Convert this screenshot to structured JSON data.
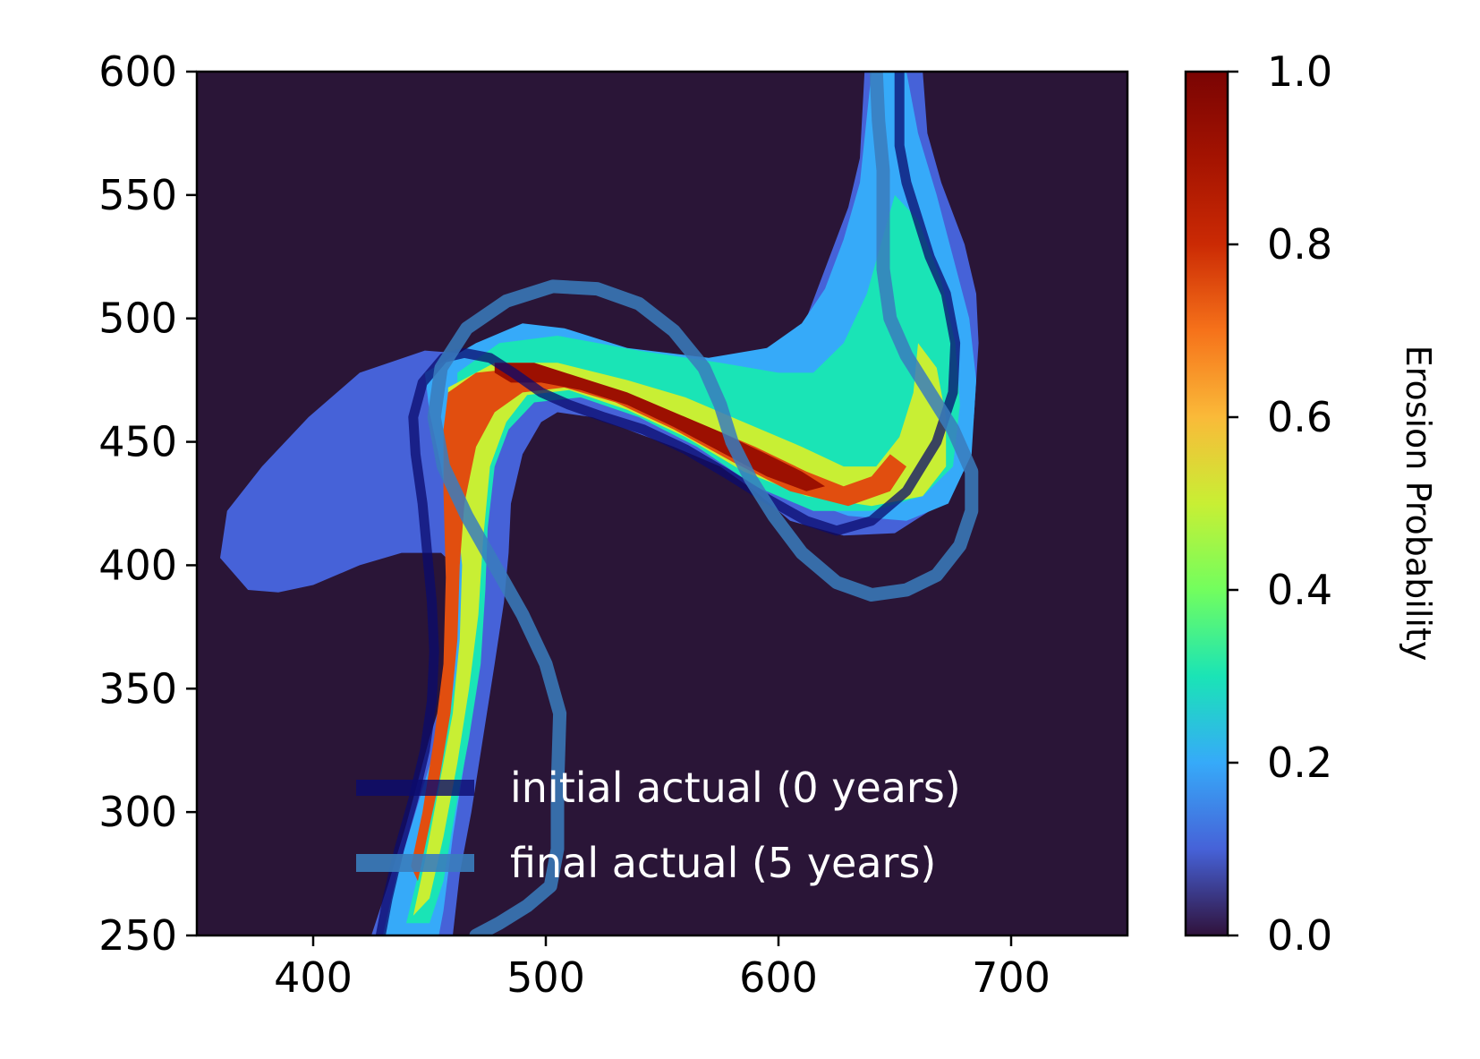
{
  "chart_data": {
    "type": "heatmap",
    "xlim": [
      350,
      750
    ],
    "ylim": [
      250,
      600
    ],
    "x_ticks": [
      400,
      500,
      600,
      700
    ],
    "y_ticks": [
      600,
      550,
      500,
      450,
      400,
      350,
      300,
      250
    ],
    "colorbar": {
      "label": "Erosion Probability",
      "range": [
        0.0,
        1.0
      ],
      "ticks": [
        "1.0",
        "0.8",
        "0.6",
        "0.4",
        "0.2",
        "0.0"
      ],
      "colormap": "turbo"
    },
    "regions": [
      {
        "probability": 0.1,
        "points": [
          [
            372,
            390
          ],
          [
            360,
            403
          ],
          [
            363,
            422
          ],
          [
            378,
            440
          ],
          [
            398,
            460
          ],
          [
            420,
            478
          ],
          [
            448,
            487
          ],
          [
            475,
            485
          ],
          [
            500,
            483
          ],
          [
            540,
            482
          ],
          [
            570,
            481
          ],
          [
            588,
            480
          ],
          [
            600,
            485
          ],
          [
            610,
            495
          ],
          [
            616,
            510
          ],
          [
            622,
            525
          ],
          [
            630,
            545
          ],
          [
            635,
            565
          ],
          [
            637,
            600
          ],
          [
            662,
            600
          ],
          [
            664,
            575
          ],
          [
            670,
            555
          ],
          [
            680,
            530
          ],
          [
            685,
            510
          ],
          [
            686,
            490
          ],
          [
            684,
            460
          ],
          [
            680,
            440
          ],
          [
            670,
            425
          ],
          [
            650,
            413
          ],
          [
            628,
            412
          ],
          [
            605,
            418
          ],
          [
            590,
            430
          ],
          [
            575,
            440
          ],
          [
            555,
            448
          ],
          [
            535,
            455
          ],
          [
            520,
            460
          ],
          [
            505,
            462
          ],
          [
            498,
            458
          ],
          [
            490,
            445
          ],
          [
            485,
            425
          ],
          [
            484,
            405
          ],
          [
            482,
            385
          ],
          [
            478,
            360
          ],
          [
            473,
            330
          ],
          [
            468,
            300
          ],
          [
            463,
            275
          ],
          [
            460,
            250
          ],
          [
            425,
            250
          ],
          [
            432,
            270
          ],
          [
            440,
            295
          ],
          [
            450,
            330
          ],
          [
            460,
            360
          ],
          [
            466,
            380
          ],
          [
            466,
            395
          ],
          [
            455,
            405
          ],
          [
            438,
            405
          ],
          [
            420,
            400
          ],
          [
            400,
            392
          ],
          [
            385,
            389
          ]
        ]
      },
      {
        "probability": 0.2,
        "points": [
          [
            448,
            478
          ],
          [
            470,
            490
          ],
          [
            490,
            498
          ],
          [
            508,
            496
          ],
          [
            535,
            488
          ],
          [
            570,
            484
          ],
          [
            595,
            488
          ],
          [
            610,
            498
          ],
          [
            620,
            512
          ],
          [
            628,
            532
          ],
          [
            635,
            555
          ],
          [
            640,
            600
          ],
          [
            655,
            600
          ],
          [
            660,
            575
          ],
          [
            668,
            550
          ],
          [
            675,
            525
          ],
          [
            682,
            500
          ],
          [
            685,
            475
          ],
          [
            683,
            445
          ],
          [
            673,
            425
          ],
          [
            655,
            418
          ],
          [
            630,
            420
          ],
          [
            600,
            430
          ],
          [
            575,
            445
          ],
          [
            555,
            455
          ],
          [
            530,
            465
          ],
          [
            505,
            470
          ],
          [
            490,
            467
          ],
          [
            480,
            455
          ],
          [
            475,
            438
          ],
          [
            473,
            410
          ],
          [
            472,
            380
          ],
          [
            470,
            350
          ],
          [
            465,
            320
          ],
          [
            460,
            290
          ],
          [
            456,
            260
          ],
          [
            454,
            250
          ],
          [
            430,
            250
          ],
          [
            436,
            275
          ],
          [
            444,
            300
          ],
          [
            452,
            325
          ],
          [
            458,
            350
          ],
          [
            461,
            380
          ],
          [
            460,
            410
          ],
          [
            455,
            440
          ],
          [
            450,
            462
          ]
        ]
      },
      {
        "probability": 0.3,
        "points": [
          [
            462,
            478
          ],
          [
            480,
            490
          ],
          [
            505,
            493
          ],
          [
            540,
            487
          ],
          [
            575,
            482
          ],
          [
            600,
            478
          ],
          [
            615,
            478
          ],
          [
            628,
            490
          ],
          [
            638,
            510
          ],
          [
            644,
            530
          ],
          [
            650,
            550
          ],
          [
            660,
            540
          ],
          [
            670,
            515
          ],
          [
            676,
            490
          ],
          [
            678,
            465
          ],
          [
            675,
            440
          ],
          [
            662,
            428
          ],
          [
            640,
            422
          ],
          [
            615,
            422
          ],
          [
            590,
            432
          ],
          [
            565,
            448
          ],
          [
            540,
            460
          ],
          [
            515,
            468
          ],
          [
            495,
            466
          ],
          [
            484,
            455
          ],
          [
            478,
            440
          ],
          [
            475,
            415
          ],
          [
            474,
            390
          ],
          [
            472,
            360
          ],
          [
            467,
            330
          ],
          [
            461,
            300
          ],
          [
            456,
            272
          ],
          [
            450,
            255
          ],
          [
            440,
            255
          ],
          [
            446,
            278
          ],
          [
            452,
            305
          ],
          [
            458,
            335
          ],
          [
            463,
            365
          ],
          [
            465,
            395
          ],
          [
            464,
            425
          ],
          [
            462,
            450
          ]
        ]
      },
      {
        "probability": 0.5,
        "points": [
          [
            458,
            472
          ],
          [
            478,
            482
          ],
          [
            505,
            482
          ],
          [
            535,
            475
          ],
          [
            560,
            468
          ],
          [
            585,
            458
          ],
          [
            610,
            448
          ],
          [
            628,
            440
          ],
          [
            642,
            440
          ],
          [
            652,
            452
          ],
          [
            658,
            470
          ],
          [
            660,
            490
          ],
          [
            668,
            480
          ],
          [
            672,
            460
          ],
          [
            672,
            440
          ],
          [
            662,
            428
          ],
          [
            640,
            424
          ],
          [
            612,
            428
          ],
          [
            585,
            438
          ],
          [
            560,
            452
          ],
          [
            535,
            463
          ],
          [
            510,
            471
          ],
          [
            492,
            469
          ],
          [
            483,
            458
          ],
          [
            476,
            440
          ],
          [
            473,
            410
          ],
          [
            471,
            380
          ],
          [
            467,
            350
          ],
          [
            462,
            320
          ],
          [
            456,
            290
          ],
          [
            450,
            265
          ],
          [
            443,
            258
          ],
          [
            448,
            280
          ],
          [
            454,
            310
          ],
          [
            460,
            340
          ],
          [
            463,
            370
          ],
          [
            464,
            400
          ],
          [
            461,
            430
          ],
          [
            458,
            455
          ]
        ]
      },
      {
        "probability": 0.75,
        "points": [
          [
            458,
            470
          ],
          [
            470,
            478
          ],
          [
            490,
            480
          ],
          [
            515,
            476
          ],
          [
            540,
            468
          ],
          [
            565,
            458
          ],
          [
            590,
            448
          ],
          [
            612,
            438
          ],
          [
            628,
            432
          ],
          [
            640,
            436
          ],
          [
            648,
            445
          ],
          [
            655,
            440
          ],
          [
            648,
            430
          ],
          [
            630,
            424
          ],
          [
            605,
            430
          ],
          [
            580,
            442
          ],
          [
            555,
            455
          ],
          [
            530,
            466
          ],
          [
            508,
            472
          ],
          [
            490,
            470
          ],
          [
            478,
            462
          ],
          [
            470,
            448
          ],
          [
            465,
            425
          ],
          [
            463,
            400
          ],
          [
            462,
            370
          ],
          [
            459,
            340
          ],
          [
            454,
            312
          ],
          [
            449,
            290
          ],
          [
            445,
            272
          ],
          [
            442,
            278
          ],
          [
            447,
            300
          ],
          [
            452,
            330
          ],
          [
            456,
            360
          ],
          [
            457,
            395
          ],
          [
            456,
            430
          ],
          [
            456,
            455
          ]
        ]
      },
      {
        "probability": 0.92,
        "points": [
          [
            478,
            482
          ],
          [
            495,
            482
          ],
          [
            515,
            476
          ],
          [
            535,
            470
          ],
          [
            555,
            462
          ],
          [
            575,
            454
          ],
          [
            595,
            445
          ],
          [
            610,
            438
          ],
          [
            620,
            432
          ],
          [
            612,
            430
          ],
          [
            595,
            436
          ],
          [
            575,
            446
          ],
          [
            555,
            456
          ],
          [
            535,
            465
          ],
          [
            515,
            471
          ],
          [
            498,
            474
          ],
          [
            485,
            474
          ],
          [
            478,
            478
          ]
        ]
      }
    ],
    "series": [
      {
        "name": "initial actual (0 years)",
        "color": "#0b0b6e",
        "points": [
          [
            429,
            250
          ],
          [
            432,
            265
          ],
          [
            437,
            285
          ],
          [
            443,
            305
          ],
          [
            448,
            325
          ],
          [
            451,
            345
          ],
          [
            452,
            365
          ],
          [
            451,
            385
          ],
          [
            449,
            405
          ],
          [
            447,
            425
          ],
          [
            444,
            445
          ],
          [
            443,
            460
          ],
          [
            447,
            474
          ],
          [
            456,
            484
          ],
          [
            465,
            486
          ],
          [
            476,
            484
          ],
          [
            486,
            478
          ],
          [
            498,
            470
          ],
          [
            510,
            465
          ],
          [
            525,
            460
          ],
          [
            542,
            455
          ],
          [
            560,
            447
          ],
          [
            578,
            437
          ],
          [
            595,
            427
          ],
          [
            612,
            418
          ],
          [
            625,
            414
          ],
          [
            640,
            418
          ],
          [
            655,
            430
          ],
          [
            668,
            450
          ],
          [
            675,
            470
          ],
          [
            676,
            490
          ],
          [
            672,
            510
          ],
          [
            665,
            525
          ],
          [
            660,
            540
          ],
          [
            655,
            555
          ],
          [
            652,
            570
          ],
          [
            652,
            585
          ],
          [
            652,
            600
          ]
        ]
      },
      {
        "name": "final actual (5 years)",
        "color": "#3a7dbd",
        "points": [
          [
            470,
            250
          ],
          [
            480,
            255
          ],
          [
            492,
            262
          ],
          [
            502,
            270
          ],
          [
            505,
            285
          ],
          [
            505,
            310
          ],
          [
            506,
            340
          ],
          [
            500,
            360
          ],
          [
            490,
            380
          ],
          [
            478,
            400
          ],
          [
            466,
            420
          ],
          [
            456,
            440
          ],
          [
            452,
            460
          ],
          [
            455,
            480
          ],
          [
            466,
            496
          ],
          [
            483,
            507
          ],
          [
            503,
            513
          ],
          [
            522,
            512
          ],
          [
            540,
            506
          ],
          [
            555,
            495
          ],
          [
            568,
            480
          ],
          [
            575,
            465
          ],
          [
            580,
            450
          ],
          [
            588,
            435
          ],
          [
            598,
            420
          ],
          [
            610,
            405
          ],
          [
            625,
            393
          ],
          [
            640,
            388
          ],
          [
            655,
            390
          ],
          [
            668,
            396
          ],
          [
            678,
            408
          ],
          [
            683,
            422
          ],
          [
            683,
            438
          ],
          [
            675,
            455
          ],
          [
            665,
            470
          ],
          [
            655,
            485
          ],
          [
            648,
            500
          ],
          [
            645,
            520
          ],
          [
            645,
            540
          ],
          [
            645,
            560
          ],
          [
            643,
            580
          ],
          [
            642,
            600
          ]
        ]
      }
    ],
    "legend": {
      "placement": "lower-right"
    }
  }
}
